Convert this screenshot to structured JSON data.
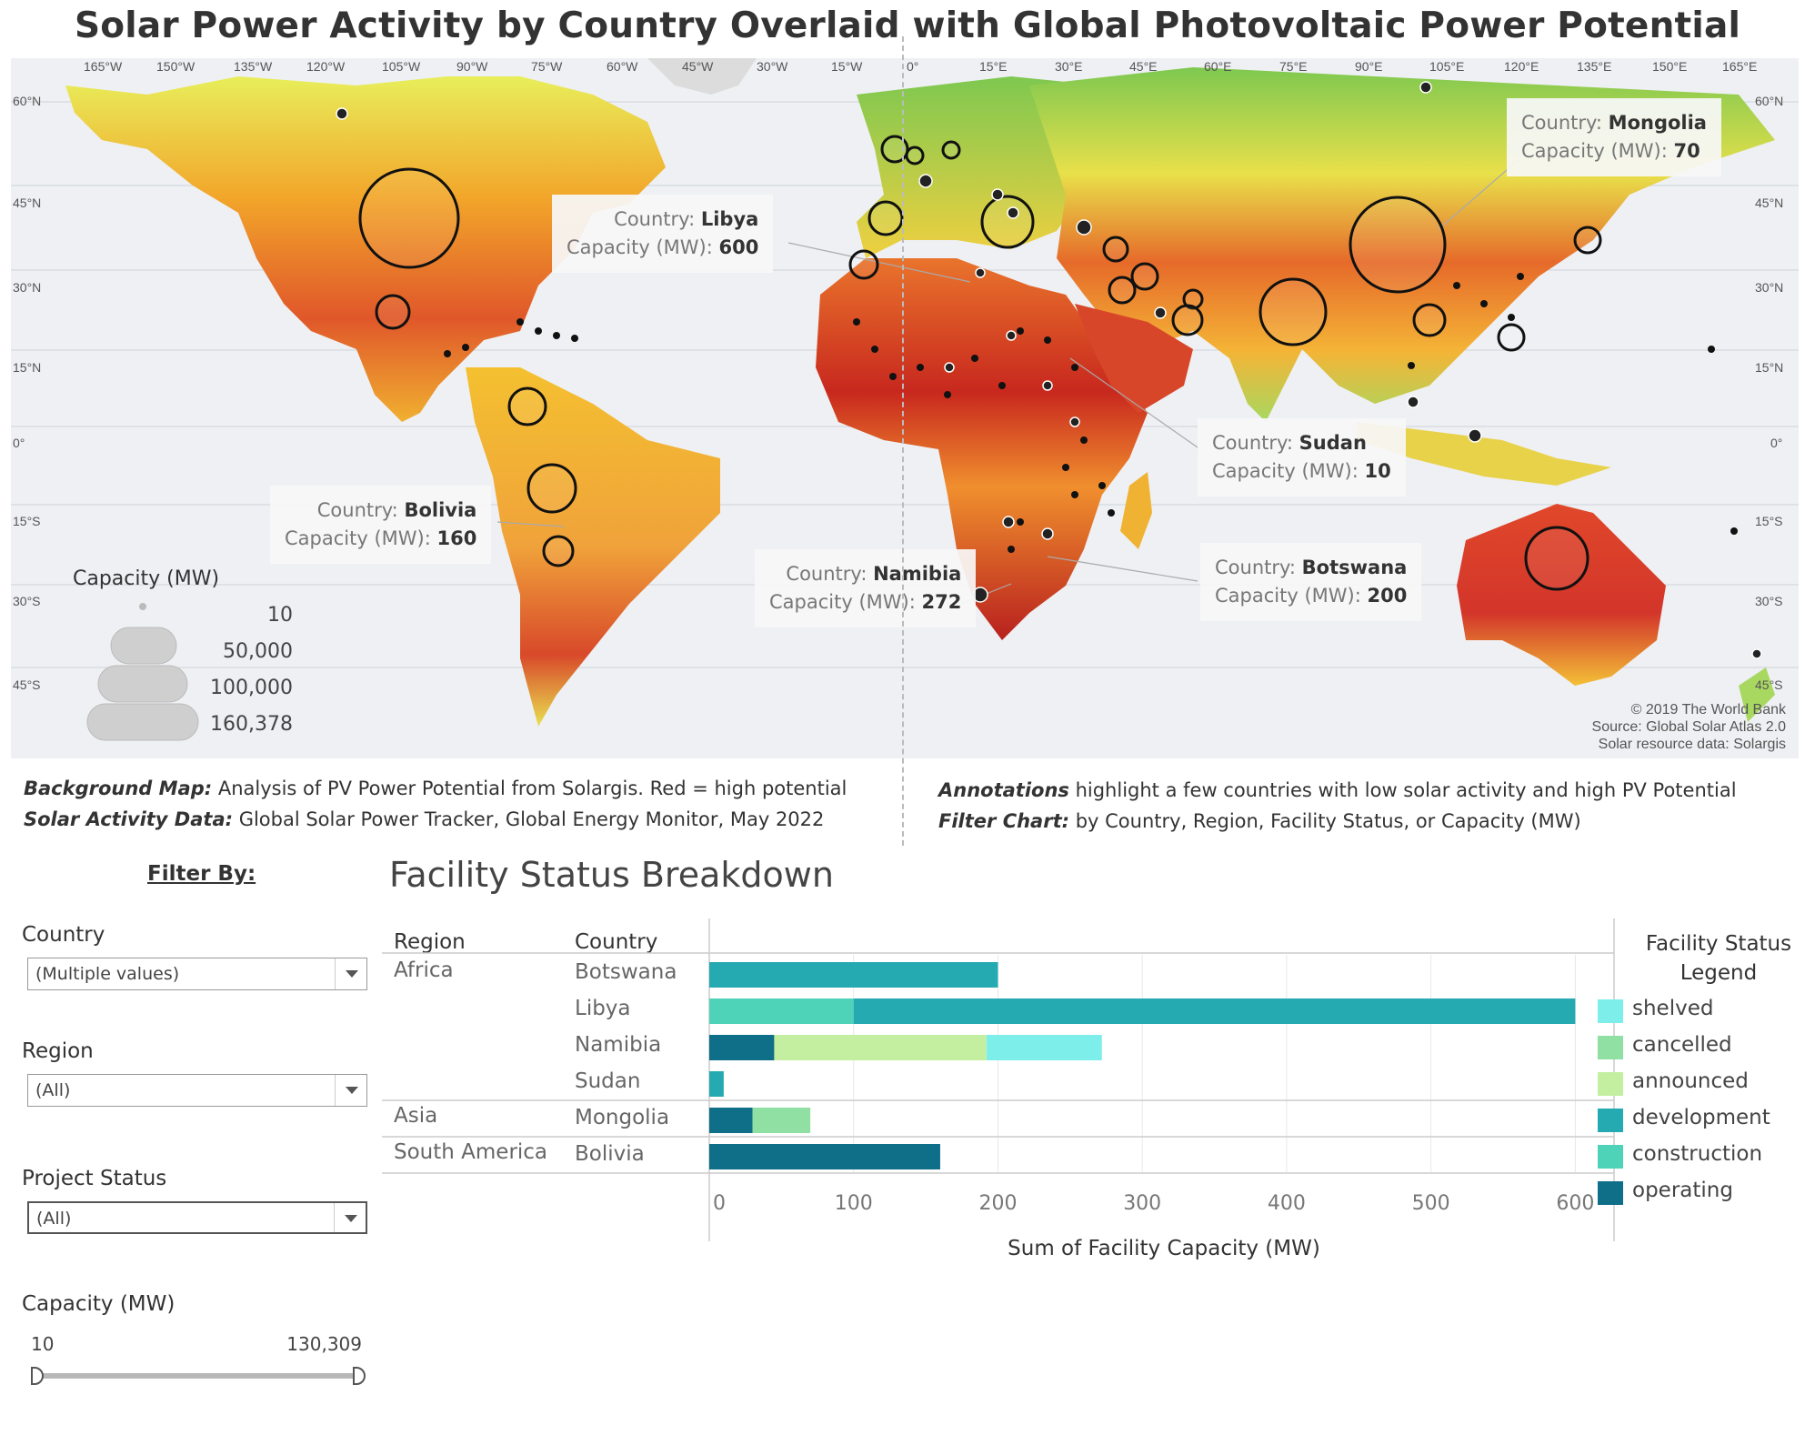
{
  "title": "Solar Power Activity by Country Overlaid with Global Photovoltaic Power Potential",
  "map": {
    "lon_ticks": [
      "165°W",
      "150°W",
      "135°W",
      "120°W",
      "105°W",
      "90°W",
      "75°W",
      "60°W",
      "45°W",
      "30°W",
      "15°W",
      "0°",
      "15°E",
      "30°E",
      "45°E",
      "60°E",
      "75°E",
      "90°E",
      "105°E",
      "120°E",
      "135°E",
      "150°E",
      "165°E"
    ],
    "lat_ticks": [
      "60°N",
      "45°N",
      "30°N",
      "15°N",
      "0°",
      "15°S",
      "30°S",
      "45°S"
    ],
    "credits": [
      "© 2019 The World Bank",
      "Source: Global Solar Atlas 2.0",
      "Solar resource data: Solargis"
    ],
    "size_legend": {
      "title": "Capacity (MW)",
      "labels": [
        "10",
        "50,000",
        "100,000",
        "160,378"
      ]
    },
    "annotations": [
      {
        "country_label": "Country:",
        "country": "Libya",
        "capacity_label": "Capacity (MW):",
        "capacity": "600"
      },
      {
        "country_label": "Country:",
        "country": "Mongolia",
        "capacity_label": "Capacity (MW):",
        "capacity": "70"
      },
      {
        "country_label": "Country:",
        "country": "Bolivia",
        "capacity_label": "Capacity (MW):",
        "capacity": "160"
      },
      {
        "country_label": "Country:",
        "country": "Sudan",
        "capacity_label": "Capacity (MW):",
        "capacity": "10"
      },
      {
        "country_label": "Country:",
        "country": "Namibia",
        "capacity_label": "Capacity (MW):",
        "capacity": "272"
      },
      {
        "country_label": "Country:",
        "country": "Botswana",
        "capacity_label": "Capacity (MW):",
        "capacity": "200"
      }
    ],
    "colors": {
      "high": "#c0392b",
      "mid": "#f39c12",
      "low": "#f1e740",
      "cool": "#7ec850",
      "ocean": "#eef0f3"
    }
  },
  "notes": {
    "left_1_label": "Background Map:",
    "left_1_text": " Analysis of PV Power Potential from Solargis.  Red = high potential",
    "left_2_label": "Solar Activity Data:",
    "left_2_text": " Global Solar Power Tracker, Global Energy Monitor, May 2022",
    "right_1_label": "Annotations",
    "right_1_text": " highlight a few countries with low solar activity and high PV Potential",
    "right_2_label": "Filter Chart:",
    "right_2_text": " by Country, Region, Facility Status, or Capacity (MW)"
  },
  "filters": {
    "heading": "Filter By:",
    "country_label": "Country",
    "country_value": "(Multiple values)",
    "region_label": "Region",
    "region_value": "(All)",
    "status_label": "Project Status",
    "status_value": "(All)",
    "capacity_label": "Capacity (MW)",
    "capacity_min": "10",
    "capacity_max": "130,309"
  },
  "chart_data": {
    "type": "bar",
    "title": "Facility Status Breakdown",
    "xlabel": "Sum of Facility Capacity (MW)",
    "header_region": "Region",
    "header_country": "Country",
    "xlim": [
      0,
      630
    ],
    "x_ticks": [
      0,
      100,
      200,
      300,
      400,
      500,
      600
    ],
    "rows": [
      {
        "region": "Africa",
        "country": "Botswana",
        "segments": [
          {
            "status": "development",
            "value": 200
          }
        ]
      },
      {
        "region": "",
        "country": "Libya",
        "segments": [
          {
            "status": "construction",
            "value": 100
          },
          {
            "status": "development",
            "value": 500
          }
        ]
      },
      {
        "region": "",
        "country": "Namibia",
        "segments": [
          {
            "status": "operating",
            "value": 45
          },
          {
            "status": "announced",
            "value": 147
          },
          {
            "status": "shelved",
            "value": 80
          }
        ]
      },
      {
        "region": "",
        "country": "Sudan",
        "segments": [
          {
            "status": "development",
            "value": 10
          }
        ]
      },
      {
        "region": "Asia",
        "country": "Mongolia",
        "segments": [
          {
            "status": "operating",
            "value": 30
          },
          {
            "status": "cancelled",
            "value": 40
          }
        ]
      },
      {
        "region": "South America",
        "country": "Bolivia",
        "segments": [
          {
            "status": "operating",
            "value": 160
          }
        ]
      }
    ],
    "legend_title": [
      "Facility Status",
      "Legend"
    ],
    "legend": [
      {
        "status": "shelved",
        "color": "#7eeeea"
      },
      {
        "status": "cancelled",
        "color": "#8fe0a2"
      },
      {
        "status": "announced",
        "color": "#c5efa0"
      },
      {
        "status": "development",
        "color": "#25aab2"
      },
      {
        "status": "construction",
        "color": "#4fd3b8"
      },
      {
        "status": "operating",
        "color": "#0f6e88"
      }
    ]
  }
}
